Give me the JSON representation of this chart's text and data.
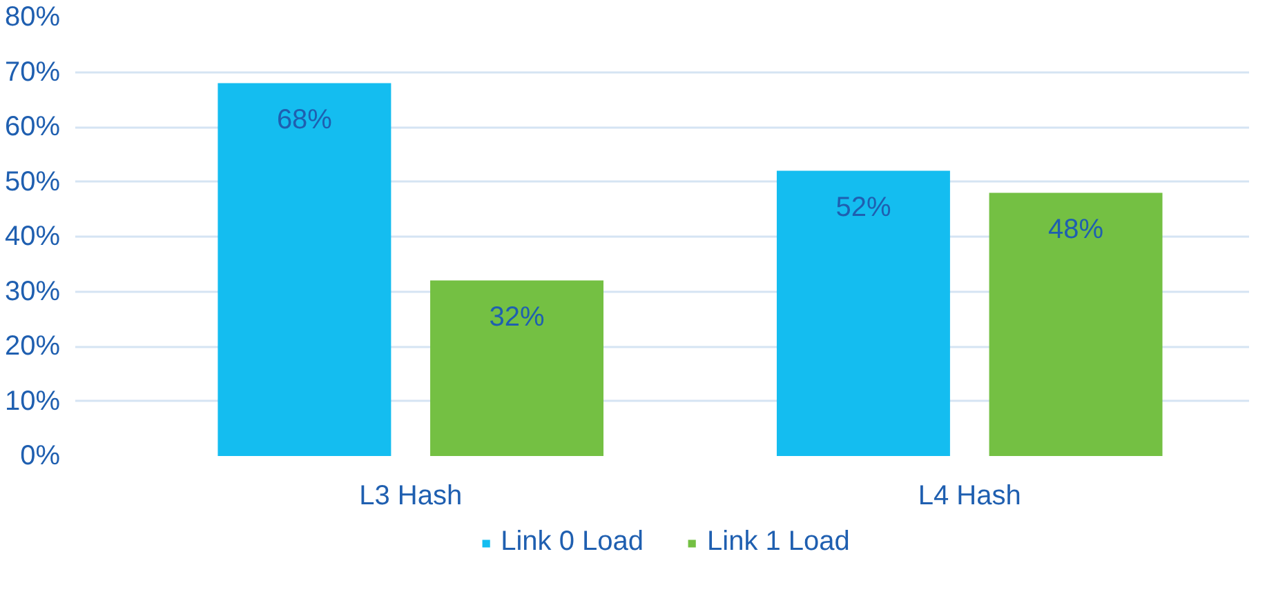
{
  "chart_data": {
    "type": "bar",
    "categories": [
      "L3 Hash",
      "L4 Hash"
    ],
    "series": [
      {
        "name": "Link 0 Load",
        "color": "#14bdf0",
        "values": [
          68,
          52
        ],
        "value_labels": [
          "68%",
          "52%"
        ]
      },
      {
        "name": "Link 1 Load",
        "color": "#74c043",
        "values": [
          32,
          48
        ],
        "value_labels": [
          "32%",
          "48%"
        ]
      }
    ],
    "ylim": [
      0,
      80
    ],
    "yticks": [
      {
        "value": 0,
        "label": "0%"
      },
      {
        "value": 10,
        "label": "10%"
      },
      {
        "value": 20,
        "label": "20%"
      },
      {
        "value": 30,
        "label": "30%"
      },
      {
        "value": 40,
        "label": "40%"
      },
      {
        "value": 50,
        "label": "50%"
      },
      {
        "value": 60,
        "label": "60%"
      },
      {
        "value": 70,
        "label": "70%"
      },
      {
        "value": 80,
        "label": "80%"
      }
    ],
    "grid": "y",
    "legend": "bottom"
  }
}
